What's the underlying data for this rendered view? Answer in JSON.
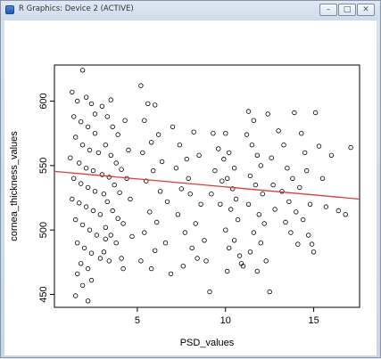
{
  "window": {
    "title": "R Graphics: Device 2 (ACTIVE)",
    "buttons": {
      "minimize": "–",
      "maximize": "□",
      "close": "✕"
    },
    "icon": "r-app-icon"
  },
  "chart_data": {
    "type": "scatter",
    "title": "",
    "xlabel": "PSD_values",
    "ylabel": "cornea_thickness_values",
    "xlim": [
      0.3,
      17.6
    ],
    "ylim": [
      440,
      628
    ],
    "xticks": [
      5,
      10,
      15
    ],
    "yticks": [
      450,
      500,
      550,
      600
    ],
    "grid": false,
    "marker": "open-circle",
    "fit_line": {
      "color": "#e0393a",
      "x": [
        0.3,
        17.6
      ],
      "y": [
        545.5,
        524.0
      ]
    },
    "points": [
      [
        1.3,
        607
      ],
      [
        1.6,
        600
      ],
      [
        1.9,
        624
      ],
      [
        2.1,
        603
      ],
      [
        2.4,
        598
      ],
      [
        2.6,
        590
      ],
      [
        1.4,
        588
      ],
      [
        1.8,
        584
      ],
      [
        2.2,
        580
      ],
      [
        2.6,
        575
      ],
      [
        1.5,
        572
      ],
      [
        1.9,
        566
      ],
      [
        2.3,
        562
      ],
      [
        2.8,
        560
      ],
      [
        1.2,
        556
      ],
      [
        1.7,
        552
      ],
      [
        2.1,
        548
      ],
      [
        2.5,
        546
      ],
      [
        3.0,
        543
      ],
      [
        1.4,
        540
      ],
      [
        1.8,
        536
      ],
      [
        2.2,
        533
      ],
      [
        2.6,
        530
      ],
      [
        3.1,
        528
      ],
      [
        1.3,
        524
      ],
      [
        1.7,
        521
      ],
      [
        2.1,
        518
      ],
      [
        2.5,
        515
      ],
      [
        2.9,
        512
      ],
      [
        1.5,
        508
      ],
      [
        1.9,
        504
      ],
      [
        2.3,
        500
      ],
      [
        2.7,
        496
      ],
      [
        3.2,
        493
      ],
      [
        1.6,
        490
      ],
      [
        2.0,
        486
      ],
      [
        2.4,
        482
      ],
      [
        2.9,
        478
      ],
      [
        1.8,
        474
      ],
      [
        2.2,
        470
      ],
      [
        1.6,
        466
      ],
      [
        2.4,
        461
      ],
      [
        1.9,
        457
      ],
      [
        1.5,
        449
      ],
      [
        2.2,
        445
      ],
      [
        3.0,
        596
      ],
      [
        3.3,
        588
      ],
      [
        3.6,
        580
      ],
      [
        3.9,
        574
      ],
      [
        3.2,
        566
      ],
      [
        3.5,
        558
      ],
      [
        3.8,
        552
      ],
      [
        4.1,
        547
      ],
      [
        3.4,
        541
      ],
      [
        3.7,
        535
      ],
      [
        4.0,
        529
      ],
      [
        3.3,
        522
      ],
      [
        3.6,
        515
      ],
      [
        3.9,
        509
      ],
      [
        3.2,
        502
      ],
      [
        3.5,
        496
      ],
      [
        3.8,
        490
      ],
      [
        3.1,
        483
      ],
      [
        3.4,
        476
      ],
      [
        4.2,
        470
      ],
      [
        3.5,
        601
      ],
      [
        4.3,
        585
      ],
      [
        4.5,
        562
      ],
      [
        4.4,
        540
      ],
      [
        4.6,
        524
      ],
      [
        4.2,
        505
      ],
      [
        4.7,
        495
      ],
      [
        4.1,
        478
      ],
      [
        5.2,
        612
      ],
      [
        5.6,
        598
      ],
      [
        6.0,
        597
      ],
      [
        5.4,
        585
      ],
      [
        6.2,
        574
      ],
      [
        5.8,
        568
      ],
      [
        5.3,
        560
      ],
      [
        6.4,
        553
      ],
      [
        5.9,
        546
      ],
      [
        5.5,
        538
      ],
      [
        6.3,
        530
      ],
      [
        6.7,
        522
      ],
      [
        5.7,
        514
      ],
      [
        6.1,
        506
      ],
      [
        5.4,
        498
      ],
      [
        6.6,
        490
      ],
      [
        6.0,
        484
      ],
      [
        5.2,
        476
      ],
      [
        5.8,
        470
      ],
      [
        6.9,
        466
      ],
      [
        7.0,
        580
      ],
      [
        7.4,
        566
      ],
      [
        7.8,
        555
      ],
      [
        7.2,
        548
      ],
      [
        7.9,
        540
      ],
      [
        7.5,
        532
      ],
      [
        8.2,
        576
      ],
      [
        8.5,
        558
      ],
      [
        8.0,
        528
      ],
      [
        8.6,
        520
      ],
      [
        7.3,
        512
      ],
      [
        8.3,
        505
      ],
      [
        7.7,
        498
      ],
      [
        8.8,
        492
      ],
      [
        8.1,
        486
      ],
      [
        8.4,
        478
      ],
      [
        7.6,
        472
      ],
      [
        8.9,
        476
      ],
      [
        9.1,
        452
      ],
      [
        9.3,
        575
      ],
      [
        9.6,
        563
      ],
      [
        9.9,
        555
      ],
      [
        9.4,
        546
      ],
      [
        9.8,
        538
      ],
      [
        9.2,
        528
      ],
      [
        9.7,
        520
      ],
      [
        10.0,
        575
      ],
      [
        10.2,
        560
      ],
      [
        10.5,
        548
      ],
      [
        10.1,
        540
      ],
      [
        10.4,
        532
      ],
      [
        10.6,
        524
      ],
      [
        10.3,
        516
      ],
      [
        10.7,
        508
      ],
      [
        10.0,
        500
      ],
      [
        10.5,
        492
      ],
      [
        10.2,
        486
      ],
      [
        10.8,
        480
      ],
      [
        10.9,
        474
      ],
      [
        11.0,
        472
      ],
      [
        10.1,
        468
      ],
      [
        11.3,
        592
      ],
      [
        11.6,
        585
      ],
      [
        11.2,
        574
      ],
      [
        11.5,
        566
      ],
      [
        11.8,
        558
      ],
      [
        12.0,
        550
      ],
      [
        11.4,
        542
      ],
      [
        11.7,
        535
      ],
      [
        12.1,
        528
      ],
      [
        11.3,
        520
      ],
      [
        11.9,
        512
      ],
      [
        12.2,
        505
      ],
      [
        11.6,
        498
      ],
      [
        12.0,
        490
      ],
      [
        11.4,
        483
      ],
      [
        12.3,
        476
      ],
      [
        11.8,
        468
      ],
      [
        12.5,
        452
      ],
      [
        12.4,
        590
      ],
      [
        12.6,
        556
      ],
      [
        12.7,
        535
      ],
      [
        12.8,
        516
      ],
      [
        13.0,
        577
      ],
      [
        13.3,
        566
      ],
      [
        13.5,
        548
      ],
      [
        13.8,
        540
      ],
      [
        13.2,
        530
      ],
      [
        13.6,
        522
      ],
      [
        14.0,
        514
      ],
      [
        13.4,
        506
      ],
      [
        13.7,
        498
      ],
      [
        14.1,
        489
      ],
      [
        13.9,
        591
      ],
      [
        14.3,
        575
      ],
      [
        14.5,
        560
      ],
      [
        14.6,
        546
      ],
      [
        14.2,
        533
      ],
      [
        14.8,
        520
      ],
      [
        14.4,
        508
      ],
      [
        14.7,
        496
      ],
      [
        14.9,
        489
      ],
      [
        15.0,
        483
      ],
      [
        15.1,
        591
      ],
      [
        15.3,
        565
      ],
      [
        15.5,
        540
      ],
      [
        15.7,
        518
      ],
      [
        16.0,
        558
      ],
      [
        16.4,
        515
      ],
      [
        16.8,
        512
      ],
      [
        17.1,
        564
      ]
    ]
  }
}
